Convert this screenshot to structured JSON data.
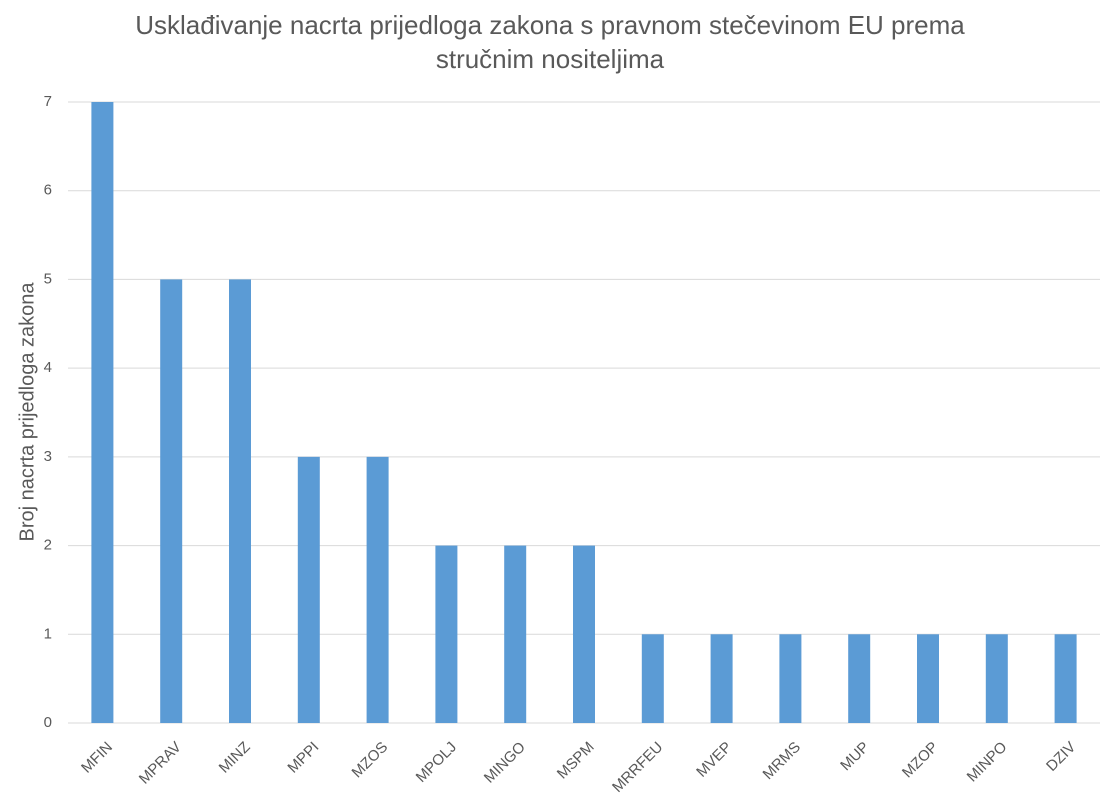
{
  "chart_data": {
    "type": "bar",
    "title": "Usklađivanje nacrta prijedloga zakona s pravnom stečevinom EU prema stručnim nositeljima",
    "y_label": "Broj nacrta prijedloga zakona",
    "categories": [
      "MFIN",
      "MPRAV",
      "MINZ",
      "MPPI",
      "MZOS",
      "MPOLJ",
      "MINGO",
      "MSPM",
      "MRRFEU",
      "MVEP",
      "MRMS",
      "MUP",
      "MZOP",
      "MINPO",
      "DZIV"
    ],
    "values": [
      7,
      5,
      5,
      3,
      3,
      2,
      2,
      2,
      1,
      1,
      1,
      1,
      1,
      1,
      1
    ],
    "color": "#5b9bd5",
    "ylim": [
      0,
      7
    ],
    "yticks": [
      0,
      1,
      2,
      3,
      4,
      5,
      6,
      7
    ],
    "grid": true
  }
}
